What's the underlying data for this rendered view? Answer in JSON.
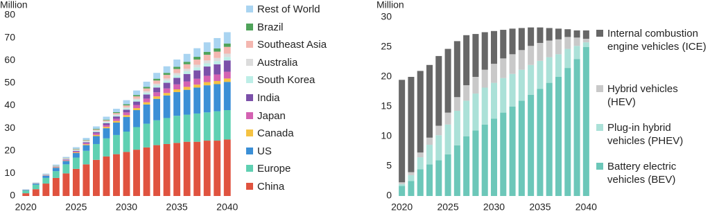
{
  "chart_data": [
    {
      "type": "bar",
      "stacked": true,
      "y_label": "Million",
      "categories": [
        2020,
        null,
        null,
        null,
        null,
        2025,
        null,
        null,
        null,
        null,
        2030,
        null,
        null,
        null,
        null,
        2035,
        null,
        null,
        null,
        null,
        2040
      ],
      "ylim": [
        0,
        80
      ],
      "yticks": [
        0,
        10,
        20,
        30,
        40,
        50,
        60,
        70,
        80
      ],
      "series": [
        {
          "name": "China",
          "color": "#e0533f",
          "values": [
            1.2,
            3,
            5.5,
            8,
            10,
            12,
            14,
            16,
            17.5,
            18.5,
            19.5,
            20.5,
            21.5,
            22.5,
            23,
            23.5,
            24,
            24,
            24.5,
            24.5,
            25
          ]
        },
        {
          "name": "Europe",
          "color": "#5fd0b2",
          "values": [
            1.2,
            2,
            2.5,
            3,
            4,
            5,
            6,
            7,
            8,
            8.5,
            9,
            10,
            10.5,
            11,
            11.5,
            12,
            12,
            12.5,
            12.5,
            13,
            13
          ]
        },
        {
          "name": "US",
          "color": "#3b8fd6",
          "values": [
            0.3,
            0.5,
            1,
            1.5,
            1.5,
            2,
            2.5,
            3.5,
            4.5,
            5.5,
            6.5,
            7.5,
            8.5,
            9.5,
            10,
            10.5,
            11,
            11.5,
            12,
            12,
            12.5
          ]
        },
        {
          "name": "Canada",
          "color": "#f5c242",
          "values": [
            0.05,
            0.1,
            0.1,
            0.2,
            0.2,
            0.3,
            0.4,
            0.5,
            0.6,
            0.7,
            0.8,
            0.9,
            1.0,
            1.1,
            1.1,
            1.2,
            1.3,
            1.3,
            1.4,
            1.4,
            1.5
          ]
        },
        {
          "name": "Japan",
          "color": "#d462b2",
          "values": [
            0.05,
            0.1,
            0.1,
            0.2,
            0.3,
            0.4,
            0.5,
            0.7,
            0.8,
            1.0,
            1.2,
            1.4,
            1.6,
            1.8,
            2.0,
            2.2,
            2.4,
            2.6,
            2.8,
            2.9,
            3.0
          ]
        },
        {
          "name": "India",
          "color": "#7b50a9",
          "values": [
            0,
            0,
            0.1,
            0.1,
            0.2,
            0.3,
            0.4,
            0.6,
            0.8,
            1.0,
            1.2,
            1.5,
            1.8,
            2.1,
            2.5,
            2.9,
            3.3,
            3.7,
            4.1,
            4.5,
            5.0
          ]
        },
        {
          "name": "South Korea",
          "color": "#bdeee7",
          "values": [
            0.05,
            0.1,
            0.1,
            0.2,
            0.2,
            0.3,
            0.3,
            0.4,
            0.5,
            0.5,
            0.6,
            0.7,
            0.8,
            0.9,
            1.0,
            1.1,
            1.2,
            1.3,
            1.4,
            1.4,
            1.5
          ]
        },
        {
          "name": "Australia",
          "color": "#dcdcdc",
          "values": [
            0,
            0,
            0.05,
            0.1,
            0.1,
            0.2,
            0.2,
            0.3,
            0.3,
            0.4,
            0.5,
            0.6,
            0.7,
            0.8,
            0.9,
            1.0,
            1.1,
            1.2,
            1.3,
            1.4,
            1.5
          ]
        },
        {
          "name": "Southeast Asia",
          "color": "#f4b7b0",
          "values": [
            0,
            0,
            0.1,
            0.1,
            0.2,
            0.2,
            0.3,
            0.4,
            0.5,
            0.6,
            0.8,
            1.0,
            1.2,
            1.4,
            1.6,
            1.8,
            2.0,
            2.3,
            2.5,
            2.8,
            3.0
          ]
        },
        {
          "name": "Brazil",
          "color": "#4fa35a",
          "values": [
            0,
            0,
            0.05,
            0.1,
            0.1,
            0.2,
            0.2,
            0.3,
            0.3,
            0.4,
            0.5,
            0.6,
            0.7,
            0.8,
            0.9,
            1.0,
            1.1,
            1.2,
            1.3,
            1.4,
            1.5
          ]
        },
        {
          "name": "Rest of World",
          "color": "#a9d4f1",
          "values": [
            0.1,
            0.2,
            0.3,
            0.4,
            0.5,
            0.7,
            0.9,
            1.1,
            1.3,
            1.5,
            1.8,
            2.0,
            2.3,
            2.6,
            2.9,
            3.2,
            3.5,
            3.8,
            4.2,
            4.6,
            5.0
          ]
        }
      ]
    },
    {
      "type": "bar",
      "stacked": true,
      "y_label": "Million",
      "categories": [
        2020,
        null,
        null,
        null,
        null,
        2025,
        null,
        null,
        null,
        null,
        2030,
        null,
        null,
        null,
        null,
        2035,
        null,
        null,
        null,
        null,
        2040
      ],
      "ylim": [
        0,
        30
      ],
      "yticks": [
        0,
        5,
        10,
        15,
        20,
        25,
        30
      ],
      "series": [
        {
          "name": "Battery electric vehicles (BEV)",
          "color": "#6cc7b9",
          "values": [
            1.7,
            2.5,
            4.5,
            5.3,
            6.0,
            7.0,
            8.5,
            10.0,
            11.0,
            12.0,
            13.0,
            14.0,
            15.0,
            16.0,
            17.0,
            18.0,
            19.0,
            20.0,
            21.5,
            23.0,
            25.0
          ]
        },
        {
          "name": "Plug-in hybrid vehicles (PHEV)",
          "color": "#abe1d8",
          "values": [
            0.3,
            1.0,
            2.0,
            3.3,
            4.2,
            5.0,
            5.8,
            6.0,
            6.2,
            6.2,
            6.0,
            5.8,
            5.5,
            5.2,
            5.0,
            4.7,
            4.3,
            3.8,
            3.2,
            2.2,
            0.8
          ]
        },
        {
          "name": "Hybrid vehicles (HEV)",
          "color": "#c9c9c9",
          "values": [
            0.3,
            0.5,
            0.8,
            1.2,
            1.6,
            2.0,
            2.3,
            2.6,
            2.8,
            3.0,
            3.2,
            3.3,
            3.3,
            3.3,
            3.2,
            3.0,
            2.8,
            2.5,
            2.0,
            1.4,
            0.6
          ]
        },
        {
          "name": "Internal combustion engine vehicles (ICE)",
          "color": "#676767",
          "values": [
            17.2,
            16,
            13.7,
            12.2,
            11.7,
            10.7,
            9.4,
            8.4,
            7.2,
            6.3,
            5.5,
            4.8,
            4.3,
            3.7,
            3.1,
            2.6,
            2.1,
            1.8,
            1.3,
            1.2,
            1.4
          ]
        }
      ]
    }
  ]
}
